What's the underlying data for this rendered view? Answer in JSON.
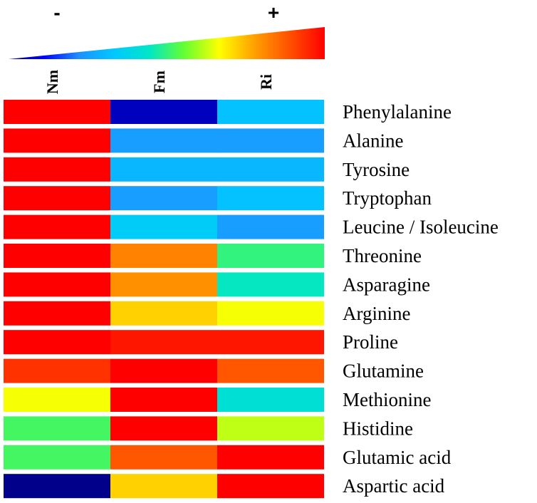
{
  "chart_data": {
    "type": "heatmap",
    "title": "",
    "legend": {
      "low_label": "-",
      "high_label": "+"
    },
    "columns": [
      "Nm",
      "Fm",
      "Ri"
    ],
    "rows": [
      "Phenylalanine",
      "Alanine",
      "Tyrosine",
      "Tryptophan",
      "Leucine / Isoleucine",
      "Threonine",
      "Asparagine",
      "Arginine",
      "Proline",
      "Glutamine",
      "Methionine",
      "Histidine",
      "Glutamic acid",
      "Aspartic acid"
    ],
    "values": [
      [
        1.0,
        0.05,
        0.32
      ],
      [
        1.0,
        0.25,
        0.25
      ],
      [
        1.0,
        0.3,
        0.3
      ],
      [
        1.0,
        0.25,
        0.32
      ],
      [
        1.0,
        0.35,
        0.25
      ],
      [
        1.0,
        0.82,
        0.5
      ],
      [
        1.0,
        0.8,
        0.45
      ],
      [
        1.0,
        0.72,
        0.66
      ],
      [
        1.0,
        0.97,
        0.97
      ],
      [
        0.93,
        1.0,
        0.88
      ],
      [
        0.66,
        1.0,
        0.42
      ],
      [
        0.52,
        1.0,
        0.62
      ],
      [
        0.52,
        0.88,
        1.0
      ],
      [
        0.0,
        0.72,
        1.0
      ]
    ],
    "colormap": [
      "#00008b",
      "#0000ff",
      "#1e90ff",
      "#00c8ff",
      "#00e6c8",
      "#64ff32",
      "#ffff00",
      "#ffa000",
      "#ff5000",
      "#ff0000"
    ]
  }
}
